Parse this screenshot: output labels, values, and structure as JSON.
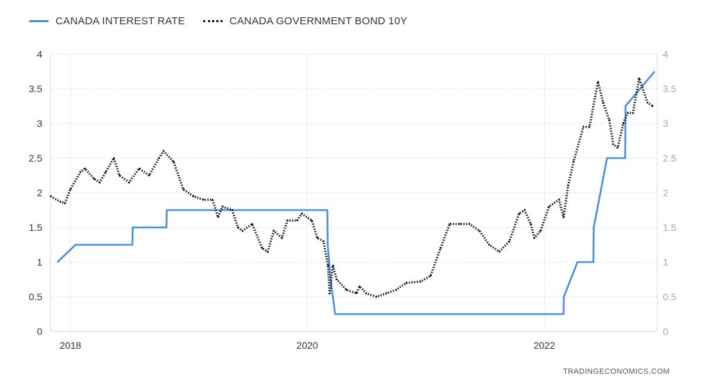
{
  "chart_data": {
    "type": "line",
    "title": "",
    "xlabel": "",
    "ylabel": "",
    "x_ticks": [
      "2018",
      "2020",
      "2022"
    ],
    "y_ticks": [
      "0",
      "0.5",
      "1",
      "1.5",
      "2",
      "2.5",
      "3",
      "3.5",
      "4"
    ],
    "ylim": [
      0,
      4
    ],
    "xlim": [
      "2017-11-01",
      "2022-12-15"
    ],
    "grid": true,
    "legend_position": "top-left",
    "source": "TRADINGECONOMICS.COM",
    "series": [
      {
        "name": "CANADA INTEREST RATE",
        "style": "solid",
        "color": "#4a90e2",
        "points": [
          [
            "2017-11-22",
            1.0
          ],
          [
            "2018-01-17",
            1.25
          ],
          [
            "2018-07-11",
            1.25
          ],
          [
            "2018-07-12",
            1.5
          ],
          [
            "2018-10-24",
            1.5
          ],
          [
            "2018-10-25",
            1.75
          ],
          [
            "2020-03-03",
            1.75
          ],
          [
            "2020-03-04",
            1.25
          ],
          [
            "2020-03-13",
            0.75
          ],
          [
            "2020-03-27",
            0.25
          ],
          [
            "2022-03-01",
            0.25
          ],
          [
            "2022-03-02",
            0.5
          ],
          [
            "2022-04-13",
            1.0
          ],
          [
            "2022-06-01",
            1.0
          ],
          [
            "2022-06-02",
            1.5
          ],
          [
            "2022-07-13",
            2.5
          ],
          [
            "2022-09-07",
            2.5
          ],
          [
            "2022-09-08",
            3.25
          ],
          [
            "2022-12-07",
            3.75
          ]
        ]
      },
      {
        "name": "CANADA GOVERNMENT BOND 10Y",
        "style": "dotted",
        "color": "#111111",
        "points": [
          [
            "2017-11-01",
            1.95
          ],
          [
            "2017-12-01",
            1.87
          ],
          [
            "2017-12-15",
            1.85
          ],
          [
            "2018-01-01",
            2.05
          ],
          [
            "2018-02-01",
            2.3
          ],
          [
            "2018-02-15",
            2.35
          ],
          [
            "2018-03-15",
            2.2
          ],
          [
            "2018-04-01",
            2.15
          ],
          [
            "2018-04-20",
            2.3
          ],
          [
            "2018-05-15",
            2.5
          ],
          [
            "2018-06-01",
            2.25
          ],
          [
            "2018-07-01",
            2.15
          ],
          [
            "2018-08-01",
            2.35
          ],
          [
            "2018-09-01",
            2.25
          ],
          [
            "2018-10-01",
            2.5
          ],
          [
            "2018-10-15",
            2.6
          ],
          [
            "2018-11-15",
            2.45
          ],
          [
            "2018-12-15",
            2.05
          ],
          [
            "2019-01-15",
            1.95
          ],
          [
            "2019-02-15",
            1.9
          ],
          [
            "2019-03-15",
            1.9
          ],
          [
            "2019-04-01",
            1.65
          ],
          [
            "2019-04-15",
            1.8
          ],
          [
            "2019-05-15",
            1.75
          ],
          [
            "2019-06-01",
            1.5
          ],
          [
            "2019-06-15",
            1.45
          ],
          [
            "2019-07-15",
            1.55
          ],
          [
            "2019-08-15",
            1.2
          ],
          [
            "2019-09-01",
            1.15
          ],
          [
            "2019-09-20",
            1.45
          ],
          [
            "2019-10-15",
            1.35
          ],
          [
            "2019-11-01",
            1.6
          ],
          [
            "2019-12-01",
            1.6
          ],
          [
            "2019-12-15",
            1.7
          ],
          [
            "2020-01-15",
            1.6
          ],
          [
            "2020-02-01",
            1.35
          ],
          [
            "2020-02-20",
            1.3
          ],
          [
            "2020-03-05",
            0.95
          ],
          [
            "2020-03-10",
            0.55
          ],
          [
            "2020-03-20",
            0.95
          ],
          [
            "2020-04-01",
            0.75
          ],
          [
            "2020-05-01",
            0.6
          ],
          [
            "2020-06-01",
            0.55
          ],
          [
            "2020-06-10",
            0.65
          ],
          [
            "2020-07-01",
            0.55
          ],
          [
            "2020-08-01",
            0.5
          ],
          [
            "2020-09-01",
            0.55
          ],
          [
            "2020-10-01",
            0.6
          ],
          [
            "2020-11-01",
            0.7
          ],
          [
            "2020-12-15",
            0.72
          ],
          [
            "2021-01-15",
            0.8
          ],
          [
            "2021-02-15",
            1.2
          ],
          [
            "2021-03-15",
            1.55
          ],
          [
            "2021-04-15",
            1.55
          ],
          [
            "2021-05-15",
            1.55
          ],
          [
            "2021-06-15",
            1.45
          ],
          [
            "2021-07-15",
            1.25
          ],
          [
            "2021-08-15",
            1.15
          ],
          [
            "2021-09-15",
            1.3
          ],
          [
            "2021-10-15",
            1.7
          ],
          [
            "2021-11-01",
            1.75
          ],
          [
            "2021-11-20",
            1.55
          ],
          [
            "2021-12-01",
            1.35
          ],
          [
            "2021-12-20",
            1.45
          ],
          [
            "2022-01-15",
            1.8
          ],
          [
            "2022-02-15",
            1.9
          ],
          [
            "2022-03-01",
            1.65
          ],
          [
            "2022-03-15",
            2.1
          ],
          [
            "2022-04-01",
            2.45
          ],
          [
            "2022-05-01",
            2.95
          ],
          [
            "2022-05-20",
            2.95
          ],
          [
            "2022-06-15",
            3.6
          ],
          [
            "2022-07-01",
            3.3
          ],
          [
            "2022-07-20",
            3.05
          ],
          [
            "2022-08-01",
            2.7
          ],
          [
            "2022-08-15",
            2.65
          ],
          [
            "2022-09-01",
            3.0
          ],
          [
            "2022-09-15",
            3.15
          ],
          [
            "2022-10-01",
            3.15
          ],
          [
            "2022-10-20",
            3.65
          ],
          [
            "2022-11-15",
            3.3
          ],
          [
            "2022-12-01",
            3.25
          ]
        ]
      }
    ]
  }
}
